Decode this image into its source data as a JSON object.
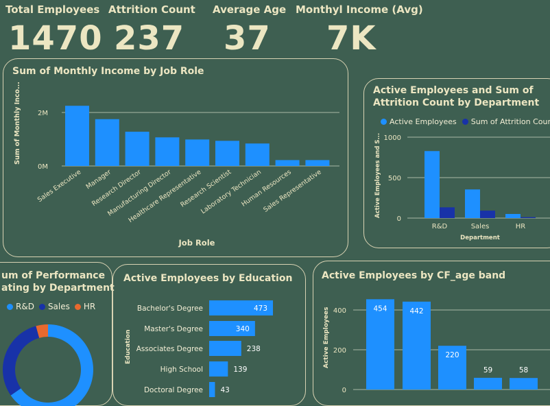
{
  "kpis": {
    "total_employees": {
      "label": "Total Employees",
      "value": "1470"
    },
    "attrition_count": {
      "label": "Attrition Count",
      "value": "237"
    },
    "average_age": {
      "label": "Average Age",
      "value": "37"
    },
    "monthly_income": {
      "label": "Monthyl Income (Avg)",
      "value": "7K"
    }
  },
  "colors": {
    "background": "#3e5f51",
    "bar": "#1e90ff",
    "bar_dark": "#1832a8",
    "hr": "#e8692e",
    "text": "#ece6c2"
  },
  "job_role_chart": {
    "title": "Sum of Monthly Income by Job Role",
    "ylabel": "Sum of Monthly Inco...",
    "xlabel": "Job Role",
    "yticks": [
      "2M",
      "0M"
    ]
  },
  "department_chart": {
    "title_line1": "Active Employees and Sum of",
    "title_line2": "Attrition Count by Department",
    "legend": [
      "Active Employees",
      "Sum of Attrition Count"
    ],
    "ylabel": "Active Employees and S...",
    "xlabel": "Department",
    "yticks": [
      "1000",
      "500",
      "0"
    ]
  },
  "performance_chart": {
    "title_line1": "um of Performance",
    "title_line2": "ating by Department",
    "legend": [
      "R&D",
      "Sales",
      "HR"
    ]
  },
  "education_chart": {
    "title": "Active Employees by Education",
    "ylabel": "Education"
  },
  "age_band_chart": {
    "title": "Active Employees by CF_age band",
    "ylabel": "Active Employees",
    "yticks": [
      "400",
      "200",
      "0"
    ]
  },
  "chart_data": [
    {
      "type": "bar",
      "title": "Sum of Monthly Income by Job Role",
      "xlabel": "Job Role",
      "ylabel": "Sum of Monthly Inco...",
      "categories": [
        "Sales Executive",
        "Manager",
        "Research Director",
        "Manufacturing Director",
        "Healthcare Representative",
        "Research Scientist",
        "Laboratory Technician",
        "Human Resources",
        "Sales Representative"
      ],
      "values": [
        2.25,
        1.75,
        1.28,
        1.07,
        0.99,
        0.94,
        0.84,
        0.22,
        0.22
      ],
      "unit": "M",
      "ylim": [
        0,
        2.6
      ],
      "grid": true
    },
    {
      "type": "bar",
      "title": "Active Employees and Sum of Attrition Count by Department",
      "xlabel": "Department",
      "ylabel": "Active Employees and S...",
      "categories": [
        "R&D",
        "Sales",
        "HR"
      ],
      "series": [
        {
          "name": "Active Employees",
          "values": [
            828,
            354,
            51
          ]
        },
        {
          "name": "Sum of Attrition Count",
          "values": [
            133,
            92,
            12
          ]
        }
      ],
      "ylim": [
        0,
        1000
      ],
      "grid": true,
      "legend": "top"
    },
    {
      "type": "pie",
      "title": "um of Performance ating by Department",
      "categories": [
        "R&D",
        "Sales",
        "HR"
      ],
      "values": [
        65.4,
        30.3,
        4.3
      ],
      "donut": true
    },
    {
      "type": "bar",
      "orientation": "horizontal",
      "title": "Active Employees by Education",
      "ylabel": "Education",
      "categories": [
        "Bachelor's Degree",
        "Master's Degree",
        "Associates Degree",
        "High School",
        "Doctoral Degree"
      ],
      "values": [
        473,
        340,
        238,
        139,
        43
      ]
    },
    {
      "type": "bar",
      "title": "Active Employees by CF_age band",
      "ylabel": "Active Employees",
      "categories": [
        "",
        "",
        "",
        "",
        ""
      ],
      "values": [
        454,
        442,
        220,
        59,
        58
      ],
      "ylim": [
        0,
        480
      ],
      "grid": true
    }
  ]
}
